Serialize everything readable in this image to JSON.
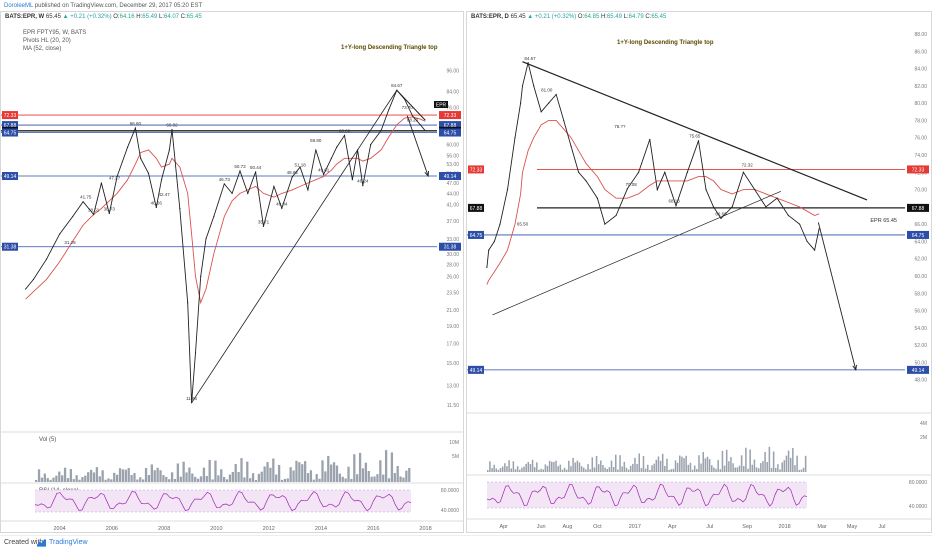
{
  "publisher": {
    "author": "DoroleeML",
    "text": "published on TradingView.com, December 29, 2017 05:20 EST"
  },
  "footer": {
    "created": "Created with",
    "brand": "TradingView"
  },
  "colors": {
    "price": "#222222",
    "ma": "#d9534f",
    "blue_level": "#2c4ea8",
    "red_level": "#e53935",
    "rsi": "#9c27b0",
    "rsi_band": "#f3e5f5",
    "volume": "#9aa3ad",
    "up": "#26a69a"
  },
  "chart_data": [
    {
      "type": "line",
      "id": "weekly",
      "header": {
        "symbol": "BATS:EPR, W",
        "price": "65.45",
        "change": "+0.21 (+0.32%)",
        "o": "64.16",
        "h": "65.49",
        "l": "64.07",
        "c": "65.45"
      },
      "indicators": [
        "EPR FPTY95, W, BATS",
        "Pivots HL (20, 20)",
        "MA (52, close)"
      ],
      "title": "1+Y-long Descending Triangle top",
      "y_scale": "log",
      "ylim": [
        11,
        100
      ],
      "x": [
        2002.7,
        2003.0,
        2003.5,
        2004.0,
        2004.5,
        2004.9,
        2005.3,
        2005.6,
        2005.9,
        2006.2,
        2006.6,
        2006.9,
        2007.1,
        2007.4,
        2007.7,
        2007.9,
        2008.2,
        2008.3,
        2008.6,
        2008.9,
        2009.05,
        2009.2,
        2009.4,
        2009.6,
        2009.9,
        2010.3,
        2010.6,
        2010.9,
        2011.2,
        2011.5,
        2011.8,
        2012.2,
        2012.5,
        2012.9,
        2013.2,
        2013.5,
        2013.8,
        2014.1,
        2014.4,
        2014.6,
        2014.9,
        2015.2,
        2015.4,
        2015.6,
        2015.9,
        2016.3,
        2016.6,
        2016.9,
        2017.2,
        2017.5,
        2017.8,
        2017.99
      ],
      "price": [
        24.0,
        25.5,
        29.0,
        34.0,
        38.0,
        41.75,
        38.51,
        47.0,
        38.73,
        49.0,
        59.0,
        66.6,
        55.0,
        50.0,
        40.26,
        48.0,
        58.0,
        66.02,
        40.0,
        22.0,
        11.66,
        16.0,
        26.0,
        33.0,
        38.0,
        46.73,
        44.0,
        50.73,
        44.0,
        50.44,
        35.71,
        46.0,
        40.04,
        48.82,
        52.0,
        45.0,
        58.0,
        49.61,
        55.0,
        59.0,
        63.6,
        48.0,
        58.0,
        46.24,
        60.0,
        65.6,
        75.0,
        84.67,
        80.0,
        72.0,
        68.0,
        65.45
      ],
      "ma": [
        22.5,
        23.6,
        25.5,
        28.5,
        32.5,
        36.0,
        38.5,
        40.0,
        42.0,
        44.0,
        48.0,
        53.0,
        57.0,
        58.0,
        55.0,
        52.0,
        53.0,
        55.0,
        52.0,
        44.0,
        34.0,
        26.0,
        22.0,
        24.0,
        30.0,
        38.0,
        42.0,
        44.0,
        45.0,
        46.0,
        44.0,
        43.0,
        44.0,
        45.0,
        46.0,
        47.0,
        48.0,
        49.0,
        51.0,
        53.0,
        55.0,
        55.0,
        55.0,
        54.0,
        55.0,
        58.0,
        63.0,
        68.0,
        71.0,
        71.5,
        70.5,
        69.5
      ],
      "pivots": [
        {
          "x": 2005.0,
          "y": 41.75,
          "t": "41.75"
        },
        {
          "x": 2006.1,
          "y": 47.2,
          "t": "47.2?"
        },
        {
          "x": 2006.9,
          "y": 66.6,
          "t": "66.60"
        },
        {
          "x": 2008.3,
          "y": 66.02,
          "t": "66.02"
        },
        {
          "x": 2005.3,
          "y": 38.51,
          "t": "38.51"
        },
        {
          "x": 2005.9,
          "y": 38.73,
          "t": "38.73"
        },
        {
          "x": 2007.7,
          "y": 40.26,
          "t": "40.26"
        },
        {
          "x": 2008.0,
          "y": 42.47,
          "t": "42.47"
        },
        {
          "x": 2009.05,
          "y": 11.66,
          "t": "11.66"
        },
        {
          "x": 2004.4,
          "y": 31.28,
          "t": "31.28"
        },
        {
          "x": 2010.3,
          "y": 46.73,
          "t": "46.73"
        },
        {
          "x": 2010.9,
          "y": 50.73,
          "t": "50.73"
        },
        {
          "x": 2011.5,
          "y": 50.44,
          "t": "50.44"
        },
        {
          "x": 2011.8,
          "y": 35.71,
          "t": "35.71"
        },
        {
          "x": 2012.5,
          "y": 40.04,
          "t": "40.04"
        },
        {
          "x": 2012.9,
          "y": 48.82,
          "t": "48.82"
        },
        {
          "x": 2013.2,
          "y": 51.18,
          "t": "51.18"
        },
        {
          "x": 2013.8,
          "y": 59.8,
          "t": "59.80"
        },
        {
          "x": 2014.1,
          "y": 49.61,
          "t": "49.61"
        },
        {
          "x": 2014.9,
          "y": 63.6,
          "t": "63.60"
        },
        {
          "x": 2015.6,
          "y": 46.24,
          "t": "46.24"
        },
        {
          "x": 2016.9,
          "y": 84.67,
          "t": "84.67"
        },
        {
          "x": 2017.3,
          "y": 73.7,
          "t": "73.70"
        },
        {
          "x": 2017.5,
          "y": 68.2,
          "t": "68.20"
        }
      ],
      "levels": [
        {
          "value": 72.33,
          "label": "72.33",
          "color": "red"
        },
        {
          "value": 67.88,
          "label": "67.88",
          "color": "blue"
        },
        {
          "value": 65.45,
          "label": "65.45",
          "color": "dark"
        },
        {
          "value": 64.75,
          "label": "64.75",
          "color": "blue"
        },
        {
          "value": 49.14,
          "label": "49.14",
          "color": "blue"
        },
        {
          "value": 31.38,
          "label": "31.38",
          "color": "blue"
        }
      ],
      "xticks": [
        {
          "x": 2004,
          "label": "2004"
        },
        {
          "x": 2006,
          "label": "2006"
        },
        {
          "x": 2008,
          "label": "2008"
        },
        {
          "x": 2010,
          "label": "2010"
        },
        {
          "x": 2012,
          "label": "2012"
        },
        {
          "x": 2014,
          "label": "2014"
        },
        {
          "x": 2016,
          "label": "2016"
        },
        {
          "x": 2018,
          "label": "2018"
        }
      ],
      "yticks": [
        96,
        84,
        76,
        72,
        68,
        64,
        60,
        56,
        53,
        50,
        47,
        44,
        41,
        37,
        33,
        30,
        28,
        26,
        23.5,
        21,
        19,
        17,
        15,
        13,
        11.5
      ],
      "volume_label": "Vol (5)",
      "volume_ticks": [
        "10M",
        "5M"
      ],
      "rsi_label": "RSI (14, close)",
      "rsi_ticks": [
        "80.0000",
        "40.0000"
      ]
    },
    {
      "type": "line",
      "id": "daily",
      "header": {
        "symbol": "BATS:EPR, D",
        "price": "65.45",
        "change": "+0.21 (+0.32%)",
        "o": "64.85",
        "h": "65.49",
        "l": "64.79",
        "c": "65.45"
      },
      "title": "1+Y-long Descending Triangle top",
      "ylim": [
        46,
        88
      ],
      "x": [
        0.05,
        0.1,
        0.25,
        0.4,
        0.6,
        0.8,
        0.95,
        1.0,
        1.15,
        1.3,
        1.5,
        1.7,
        1.9,
        2.1,
        2.3,
        2.5,
        2.7,
        3.0,
        3.2,
        3.5,
        3.8,
        4.1,
        4.4,
        4.6,
        4.8,
        5.1,
        5.4,
        5.7,
        5.9,
        6.1,
        6.3,
        6.6,
        6.9,
        7.2,
        7.5,
        7.8,
        8.1,
        8.4,
        8.6,
        8.8,
        8.92
      ],
      "price": [
        61.0,
        63.0,
        64.0,
        66.0,
        70.0,
        76.0,
        80.0,
        82.0,
        84.67,
        82.0,
        79.0,
        80.0,
        81.0,
        78.0,
        75.0,
        72.0,
        71.0,
        69.0,
        66.0,
        67.0,
        70.08,
        72.0,
        75.8,
        70.0,
        72.0,
        68.13,
        72.0,
        75.65,
        70.0,
        68.0,
        66.66,
        68.0,
        72.0,
        70.0,
        68.0,
        69.0,
        67.0,
        66.0,
        64.0,
        63.0,
        65.45
      ],
      "ma": [
        59.0,
        59.5,
        60.5,
        61.5,
        63.0,
        66.0,
        69.5,
        72.0,
        74.5,
        76.0,
        77.5,
        78.0,
        78.0,
        77.0,
        76.0,
        74.5,
        73.0,
        71.5,
        70.0,
        69.0,
        69.0,
        69.5,
        70.5,
        71.0,
        71.0,
        71.0,
        71.0,
        71.5,
        71.5,
        71.0,
        70.0,
        69.5,
        70.0,
        70.0,
        69.5,
        69.0,
        68.5,
        68.0,
        67.5,
        67.0,
        67.2
      ],
      "pivots": [
        {
          "x": 1.2,
          "y": 84.67,
          "t": "84.67"
        },
        {
          "x": 1.65,
          "y": 81.0,
          "t": "81.00"
        },
        {
          "x": 3.6,
          "y": 76.8,
          "t": "76.??"
        },
        {
          "x": 3.9,
          "y": 70.08,
          "t": "70.08"
        },
        {
          "x": 5.6,
          "y": 75.65,
          "t": "75.65"
        },
        {
          "x": 5.05,
          "y": 68.13,
          "t": "68.13"
        },
        {
          "x": 6.3,
          "y": 66.66,
          "t": "66.66"
        },
        {
          "x": 1.0,
          "y": 65.5,
          "t": "65.50"
        },
        {
          "x": 7.0,
          "y": 72.32,
          "t": "72.32"
        }
      ],
      "levels": [
        {
          "value": 72.33,
          "label": "72.33",
          "color": "red"
        },
        {
          "value": 67.88,
          "label": "67.88",
          "color": "dark"
        },
        {
          "value": 64.75,
          "label": "64.75",
          "color": "blue"
        },
        {
          "value": 49.14,
          "label": "49.14",
          "color": "blue"
        }
      ],
      "epr_label": "EPR 65.45",
      "xticks": [
        {
          "x": 0.5,
          "label": "Apr"
        },
        {
          "x": 1.5,
          "label": "Jun"
        },
        {
          "x": 2.2,
          "label": "Aug"
        },
        {
          "x": 3.0,
          "label": "Oct"
        },
        {
          "x": 4.0,
          "label": "2017"
        },
        {
          "x": 5.0,
          "label": "Apr"
        },
        {
          "x": 6.0,
          "label": "Jul"
        },
        {
          "x": 7.0,
          "label": "Sep"
        },
        {
          "x": 8.0,
          "label": "2018"
        },
        {
          "x": 9.0,
          "label": "Mar"
        },
        {
          "x": 9.8,
          "label": "May"
        },
        {
          "x": 10.6,
          "label": "Jul"
        }
      ],
      "yticks": [
        88,
        86,
        84,
        82,
        80,
        78,
        76,
        74,
        72,
        70,
        68,
        66,
        64,
        62,
        60,
        58,
        56,
        54,
        52,
        50,
        48
      ],
      "volume_ticks": [
        "4M",
        "2M"
      ],
      "rsi_ticks": [
        "80.0000",
        "40.0000"
      ]
    }
  ]
}
